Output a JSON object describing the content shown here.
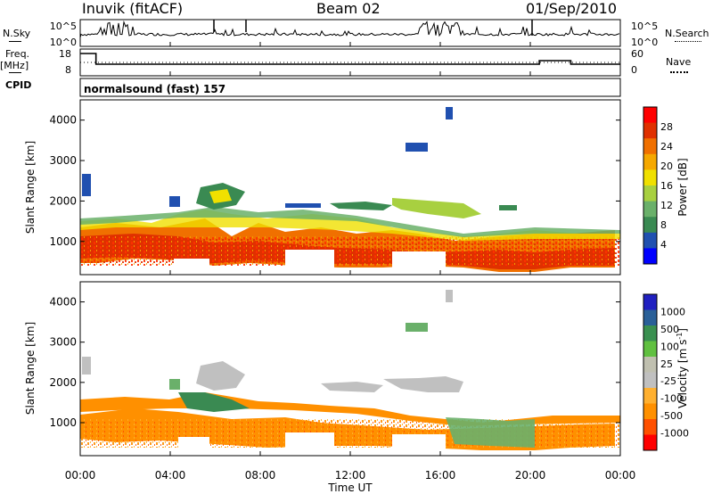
{
  "header": {
    "station": "Inuvik (fitACF)",
    "beam": "Beam 02",
    "date": "01/Sep/2010"
  },
  "side_labels": {
    "nsky": "N.Sky",
    "nsearch": "N.Search",
    "freq": "Freq.",
    "freq_unit": "[MHz]",
    "nave": "Nave",
    "cpid": "CPID"
  },
  "cpid_text": "normalsound (fast) 157",
  "colors": {
    "power": [
      "#0000ff",
      "#2050b0",
      "#3a8a52",
      "#6ab06a",
      "#a8d040",
      "#f0e000",
      "#f5a800",
      "#f07000",
      "#e03000",
      "#ff0000"
    ],
    "velocity": [
      "#ff0000",
      "#ff5000",
      "#ff9000",
      "#ffb030",
      "#c0c0c0",
      "#c0c0b0",
      "#60c040",
      "#3a9050",
      "#2a6098",
      "#2020c0"
    ]
  },
  "chart_data": [
    {
      "type": "line",
      "title": "N.Sky / N.Search",
      "y_ticks_left": [
        "10^5",
        "10^0"
      ],
      "y_ticks_right": [
        "10^5",
        "10^0"
      ]
    },
    {
      "type": "line",
      "title": "Freq. / Nave",
      "y_ticks_left": [
        "18",
        "8"
      ],
      "y_ticks_right": [
        "60",
        "0"
      ],
      "freq_ylim": [
        8,
        18
      ],
      "nave_ylim": [
        0,
        60
      ],
      "freq_steps": [
        {
          "x": 0.0,
          "y": 18.0
        },
        {
          "x": 0.7,
          "y": 12.0
        },
        {
          "x": 19.8,
          "y": 12.0
        },
        {
          "x": 20.4,
          "y": 14.0
        },
        {
          "x": 21.8,
          "y": 12.0
        },
        {
          "x": 24.0,
          "y": 12.0
        }
      ]
    },
    {
      "type": "heatmap",
      "xlabel": "",
      "ylabel": "Slant Range [km]",
      "ylim": [
        180,
        4500
      ],
      "xlim": [
        "00:00",
        "00:00"
      ],
      "y_ticks": [
        "4000",
        "3000",
        "2000",
        "1000"
      ],
      "colorbar_label": "Power [dB]",
      "colorbar_ticks": [
        "28",
        "24",
        "20",
        "16",
        "12",
        "8",
        "4"
      ]
    },
    {
      "type": "heatmap",
      "xlabel": "Time UT",
      "ylabel": "Slant Range [km]",
      "ylim": [
        180,
        4500
      ],
      "x_ticks": [
        "00:00",
        "04:00",
        "08:00",
        "12:00",
        "16:00",
        "20:00",
        "00:00"
      ],
      "y_ticks": [
        "4000",
        "3000",
        "2000",
        "1000"
      ],
      "colorbar_label": "Velocity [m s",
      "colorbar_label_sup": "-1",
      "colorbar_label_end": "]",
      "colorbar_ticks": [
        "1000",
        "500",
        "100",
        "25",
        "-25",
        "-100",
        "-500",
        "-1000"
      ]
    }
  ]
}
